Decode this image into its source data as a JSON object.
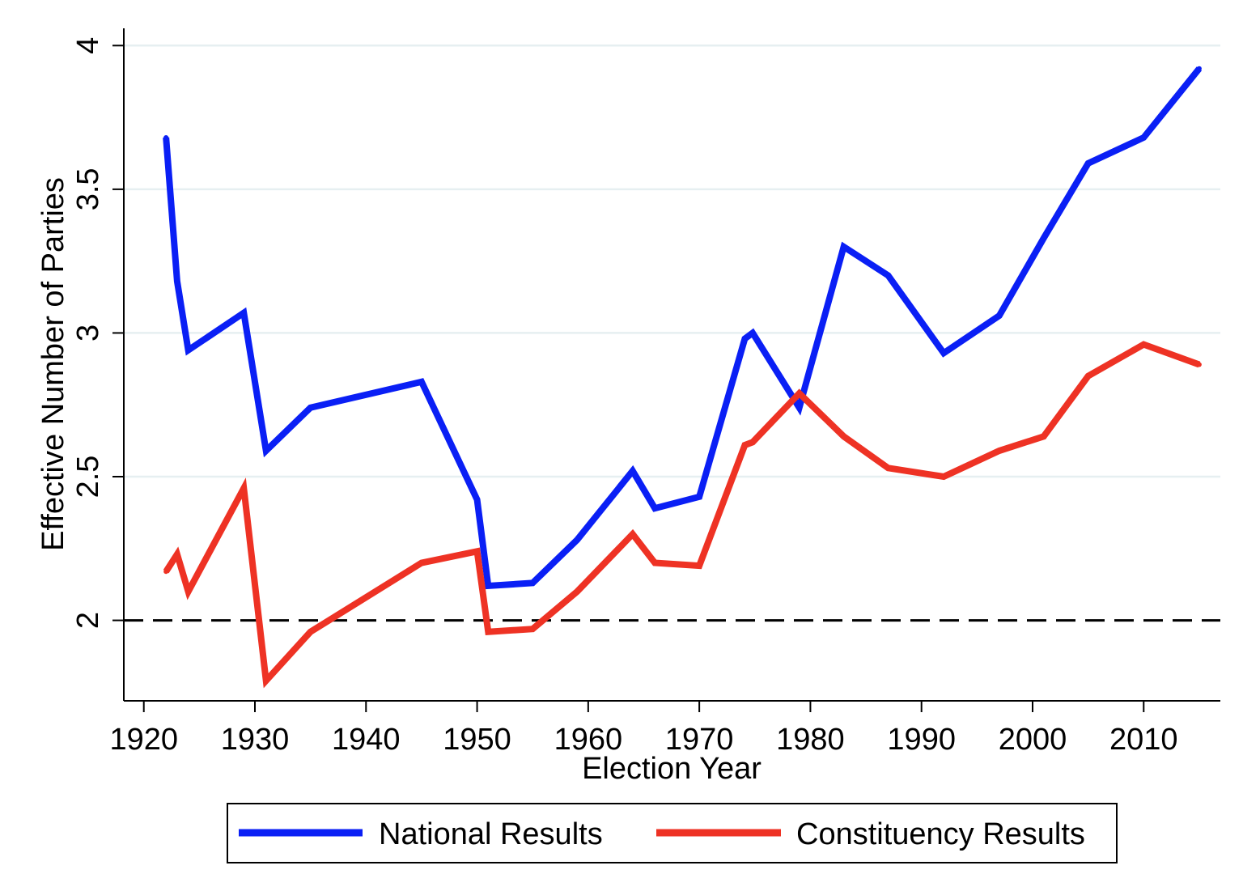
{
  "chart_data": {
    "type": "line",
    "title": "",
    "xlabel": "Election Year",
    "ylabel": "Effective Number of Parties",
    "xlim": [
      1918.2,
      2016.9
    ],
    "ylim": [
      1.72,
      4.06
    ],
    "xticks": [
      1920,
      1930,
      1940,
      1950,
      1960,
      1970,
      1980,
      1990,
      2000,
      2010
    ],
    "yticks": [
      2,
      2.5,
      3,
      3.5,
      4
    ],
    "ytick_labels": [
      "2",
      "2.5",
      "3",
      "3.5",
      "4"
    ],
    "grid": "horizontal",
    "reference_line": {
      "y": 2,
      "style": "dashed",
      "color": "#000000"
    },
    "legend_placement": "bottom",
    "x": [
      1922,
      1923,
      1924,
      1929,
      1931,
      1935,
      1945,
      1950,
      1951,
      1955,
      1959,
      1964,
      1966,
      1970,
      1974.1,
      1974.8,
      1979,
      1983,
      1987,
      1992,
      1997,
      2001,
      2005,
      2010,
      2015
    ],
    "series": [
      {
        "name": "National Results",
        "color": "#0a1ff5",
        "values": [
          3.68,
          3.18,
          2.94,
          3.07,
          2.59,
          2.74,
          2.83,
          2.42,
          2.12,
          2.13,
          2.28,
          2.52,
          2.39,
          2.43,
          2.98,
          3.0,
          2.74,
          3.3,
          3.2,
          2.93,
          3.06,
          3.33,
          3.59,
          3.68,
          3.92
        ]
      },
      {
        "name": "Constituency Results",
        "color": "#ee3224",
        "values": [
          2.17,
          2.23,
          2.1,
          2.46,
          1.79,
          1.96,
          2.2,
          2.24,
          1.96,
          1.97,
          2.1,
          2.3,
          2.2,
          2.19,
          2.61,
          2.62,
          2.79,
          2.64,
          2.53,
          2.5,
          2.59,
          2.64,
          2.85,
          2.96,
          2.89
        ]
      }
    ]
  }
}
